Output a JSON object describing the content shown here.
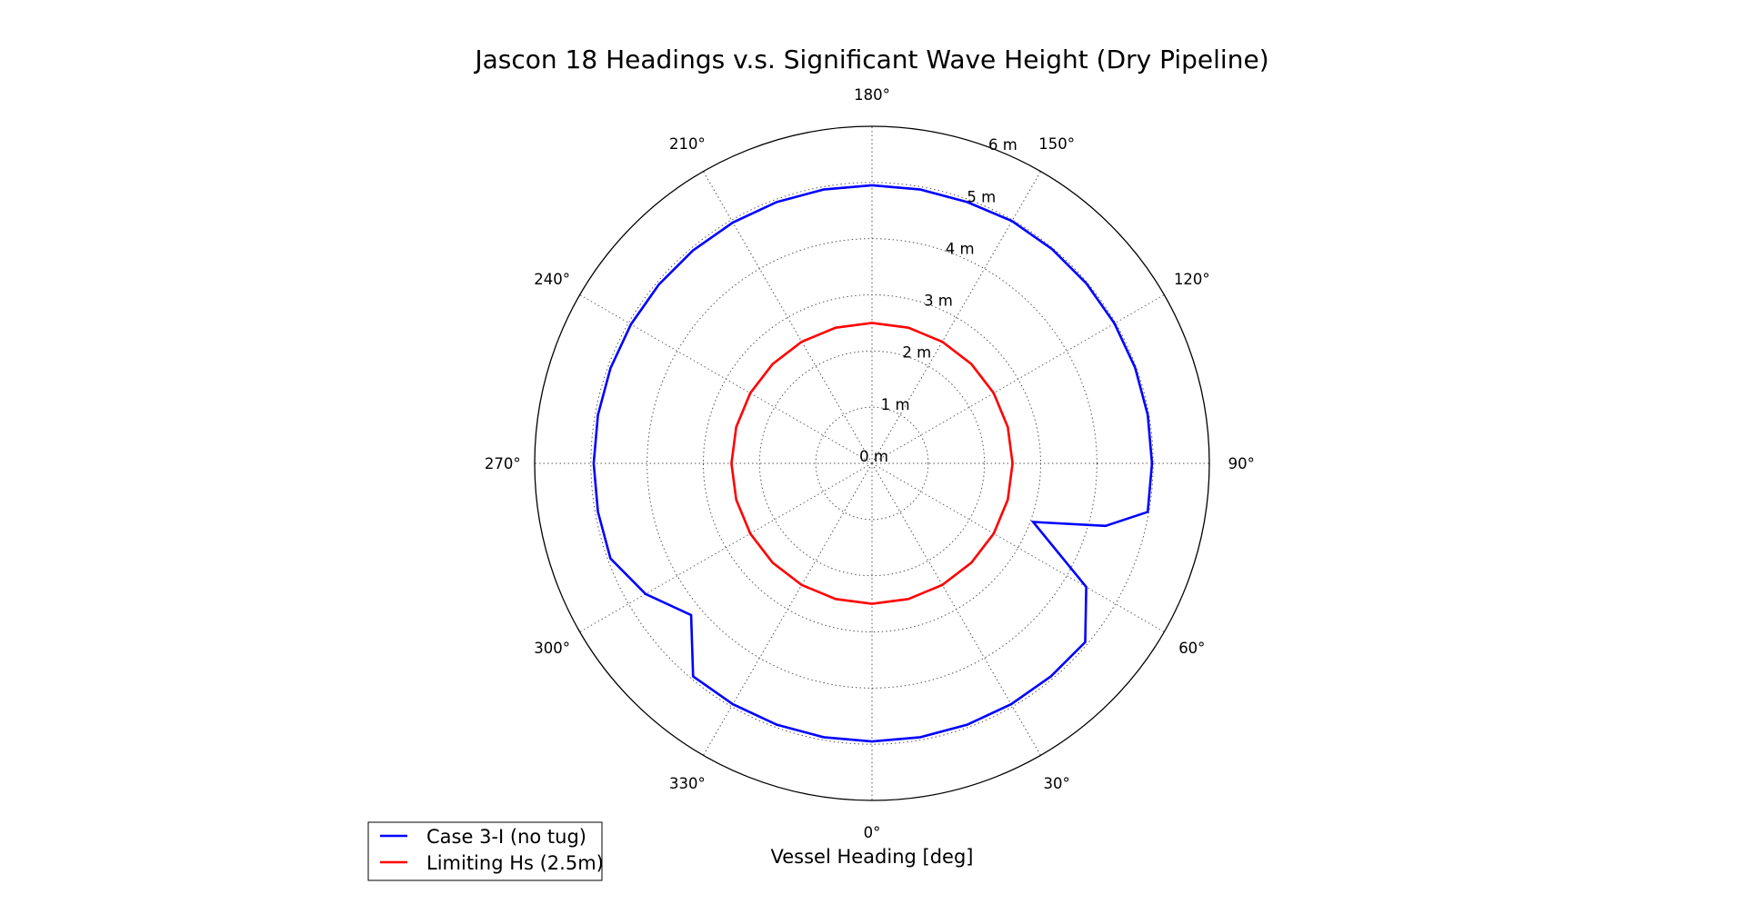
{
  "chart_data": {
    "type": "polar-line",
    "title": "Jascon 18 Headings v.s. Significant Wave Height (Dry Pipeline)",
    "xlabel": "Vessel Heading [deg]",
    "angular_ticks": [
      "0°",
      "30°",
      "60°",
      "90°",
      "120°",
      "150°",
      "180°",
      "210°",
      "240°",
      "270°",
      "300°",
      "330°"
    ],
    "angular_tick_values": [
      0,
      30,
      60,
      90,
      120,
      150,
      180,
      210,
      240,
      270,
      300,
      330
    ],
    "angle_zero": "bottom",
    "angle_direction": "counterclockwise",
    "radial_ticks": [
      "0 m",
      "1 m",
      "2 m",
      "3 m",
      "4 m",
      "5 m",
      "6 m"
    ],
    "radial_tick_values": [
      0,
      1,
      2,
      3,
      4,
      5,
      6
    ],
    "rlim": [
      0,
      6
    ],
    "grid": true,
    "legend_position": "bottom-left",
    "series": [
      {
        "name": "Case 3-I (no tug)",
        "color": "#0000ff",
        "theta": [
          0,
          10,
          20,
          30,
          40,
          50,
          60,
          70,
          75,
          80,
          90,
          100,
          110,
          120,
          130,
          140,
          150,
          160,
          170,
          180,
          190,
          200,
          210,
          220,
          230,
          240,
          250,
          260,
          270,
          280,
          290,
          300,
          310,
          320,
          330,
          340,
          350,
          360
        ],
        "r": [
          4.95,
          4.95,
          4.95,
          4.95,
          4.95,
          4.95,
          4.4,
          3.05,
          4.3,
          4.98,
          4.98,
          4.98,
          4.98,
          4.98,
          4.98,
          4.98,
          4.98,
          4.95,
          4.95,
          4.95,
          4.95,
          4.95,
          4.95,
          4.95,
          4.95,
          4.95,
          4.95,
          4.95,
          4.95,
          4.95,
          4.95,
          4.65,
          4.2,
          4.95,
          4.95,
          4.95,
          4.95,
          4.95
        ]
      },
      {
        "name": "Limiting Hs (2.5m)",
        "color": "#ff0000",
        "theta": [
          0,
          15,
          30,
          45,
          60,
          75,
          90,
          105,
          120,
          135,
          150,
          165,
          180,
          195,
          210,
          225,
          240,
          255,
          270,
          285,
          300,
          315,
          330,
          345,
          360
        ],
        "r": [
          2.5,
          2.5,
          2.5,
          2.5,
          2.5,
          2.5,
          2.5,
          2.5,
          2.5,
          2.5,
          2.5,
          2.5,
          2.5,
          2.5,
          2.5,
          2.5,
          2.5,
          2.5,
          2.5,
          2.5,
          2.5,
          2.5,
          2.5,
          2.5,
          2.5
        ]
      }
    ]
  }
}
